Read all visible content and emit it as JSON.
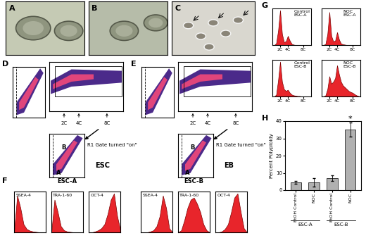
{
  "panel_letters": [
    "A",
    "B",
    "C",
    "D",
    "E",
    "F",
    "G",
    "H"
  ],
  "D": {
    "label": "ESC",
    "gate_text": "R1 Gate turned \"on\"",
    "ploidy_marks": [
      "2C",
      "4C",
      "8C"
    ],
    "populations": [
      "A",
      "B"
    ]
  },
  "E": {
    "label": "EB",
    "gate_text": "R1 Gate turned \"on\"",
    "ploidy_marks": [
      "2C",
      "4C",
      "8C"
    ],
    "populations": [
      "A",
      "B"
    ]
  },
  "F": {
    "type": "histogram",
    "color": "#e8252b",
    "tick_labels": false,
    "x": [
      0,
      1,
      2,
      3,
      4,
      5,
      6,
      7,
      8,
      9,
      10
    ],
    "ylim": [
      0,
      100
    ],
    "groups": [
      {
        "title": "ESC-A",
        "series": [
          {
            "name": "SSEA-4",
            "values": [
              0,
              90,
              60,
              20,
              8,
              4,
              2,
              1,
              0,
              0,
              0
            ]
          },
          {
            "name": "TRA-1-60",
            "values": [
              0,
              80,
              50,
              15,
              5,
              2,
              1,
              0,
              0,
              0,
              0
            ]
          },
          {
            "name": "OCT-4",
            "values": [
              0,
              0,
              2,
              5,
              10,
              20,
              45,
              80,
              95,
              40,
              5
            ]
          }
        ]
      },
      {
        "title": "ESC-B",
        "series": [
          {
            "name": "SSEA-4",
            "values": [
              0,
              0,
              0,
              2,
              5,
              15,
              40,
              90,
              60,
              10,
              0
            ]
          },
          {
            "name": "TRA-1-60",
            "values": [
              0,
              5,
              30,
              60,
              80,
              85,
              70,
              50,
              20,
              5,
              0
            ]
          },
          {
            "name": "OCT-4",
            "values": [
              0,
              0,
              2,
              8,
              20,
              50,
              85,
              95,
              50,
              10,
              0
            ]
          }
        ]
      }
    ]
  },
  "G": {
    "type": "histogram",
    "color": "#e8252b",
    "tick_labels": "x",
    "x": [
      0,
      0.5,
      1,
      1.5,
      2,
      2.5,
      3,
      3.5,
      4,
      4.5,
      5,
      5.5,
      6,
      6.5,
      7,
      7.5,
      8,
      8.5,
      9,
      9.5,
      10
    ],
    "xlim": [
      0,
      10
    ],
    "ylim": [
      0,
      100
    ],
    "xticks": [
      {
        "value": 2,
        "label": "2C"
      },
      {
        "value": 4,
        "label": "4C"
      },
      {
        "value": 8,
        "label": "8C"
      }
    ],
    "series": [
      {
        "name": [
          "Control",
          "ESC-A"
        ],
        "values": [
          0,
          0,
          5,
          40,
          95,
          30,
          8,
          10,
          25,
          12,
          3,
          1,
          0,
          0,
          0,
          0,
          0,
          0,
          0,
          0,
          0
        ]
      },
      {
        "name": [
          "NOC",
          "ESC-A"
        ],
        "values": [
          0,
          0,
          3,
          30,
          90,
          25,
          10,
          12,
          35,
          15,
          4,
          2,
          1,
          0,
          0,
          0,
          0,
          0,
          0,
          0,
          0
        ]
      },
      {
        "name": [
          "Control",
          "ESC-B"
        ],
        "values": [
          0,
          0,
          5,
          45,
          95,
          40,
          20,
          15,
          18,
          10,
          5,
          3,
          2,
          1,
          1,
          0,
          0,
          0,
          0,
          0,
          0
        ]
      },
      {
        "name": [
          "NOC",
          "ESC-B"
        ],
        "values": [
          0,
          0,
          3,
          20,
          55,
          35,
          40,
          50,
          85,
          60,
          40,
          30,
          25,
          20,
          15,
          12,
          10,
          6,
          3,
          1,
          0
        ]
      }
    ]
  },
  "chart_data": {
    "type": "bar",
    "y_label": "Percent Polyploidy",
    "categories": [
      "EtOH Control",
      "NOC",
      "EtOH Control",
      "NOC"
    ],
    "groups": [
      "ESC-A",
      "ESC-B"
    ],
    "values": [
      4.5,
      4.5,
      7,
      35
    ],
    "errors": [
      1,
      2.5,
      1.5,
      4
    ],
    "color": "#b0b0b0",
    "ylim": [
      0,
      40
    ],
    "yticks": [
      0,
      10,
      20,
      30,
      40
    ],
    "annotations": [
      {
        "text": "*",
        "category": 3
      }
    ]
  }
}
